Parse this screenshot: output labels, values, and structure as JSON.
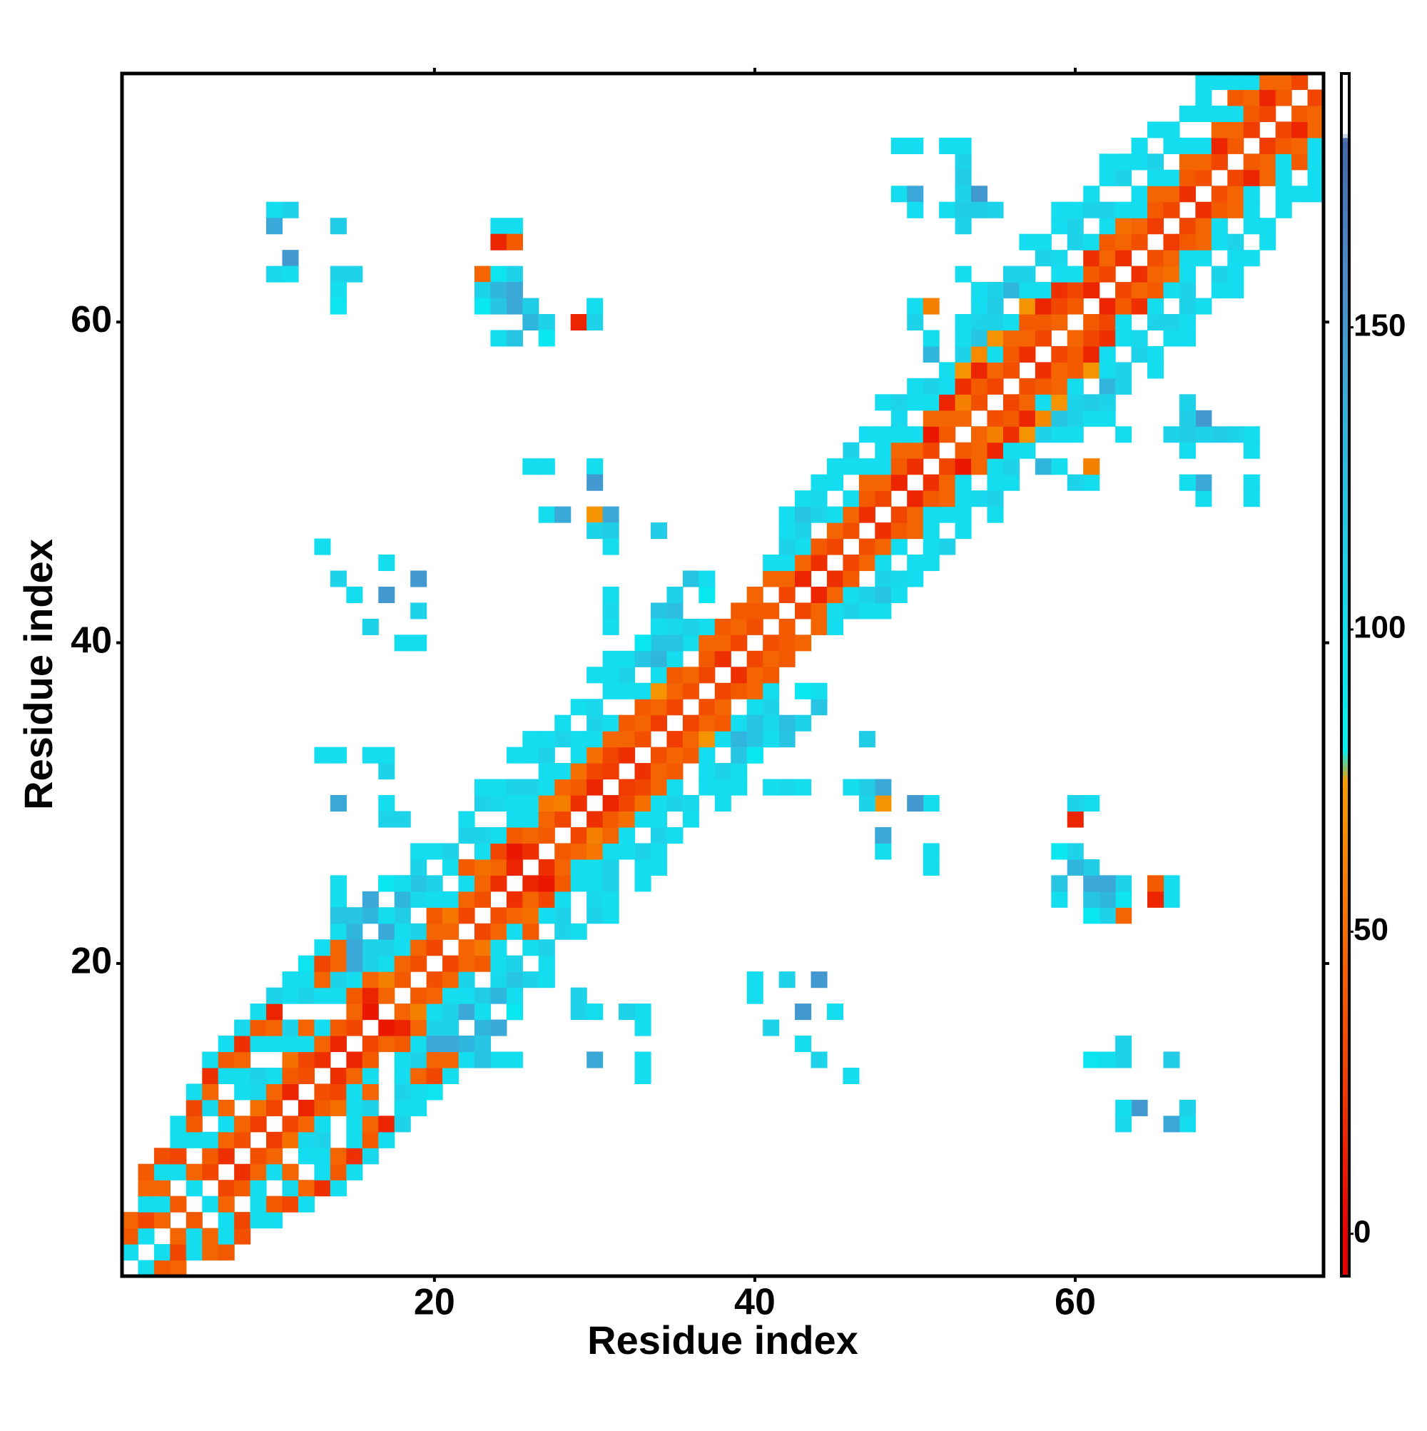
{
  "chart_data": {
    "type": "contact-map",
    "x_label": "Residue index",
    "y_label": "Residue index",
    "xlim": [
      0.5,
      75.5
    ],
    "ylim": [
      0.5,
      75.5
    ],
    "xticks": [
      20,
      40,
      60
    ],
    "yticks": [
      20,
      40,
      60
    ],
    "clim": [
      -7,
      192
    ],
    "cticks": [
      0,
      50,
      100,
      150
    ],
    "colorscale": [
      [
        0,
        "#e60000"
      ],
      [
        25,
        "#f03c00"
      ],
      [
        50,
        "#f56e00"
      ],
      [
        75,
        "#f59c00"
      ],
      [
        80,
        "#00f2f5"
      ],
      [
        110,
        "#1cd3ea"
      ],
      [
        140,
        "#3aa8d8"
      ],
      [
        160,
        "#4a8ac8"
      ],
      [
        181,
        "#4466aa"
      ],
      [
        182,
        "#ffffff"
      ]
    ],
    "symmetric": true,
    "first_residue": 1,
    "offsets": [
      1,
      2,
      3,
      4,
      5,
      6,
      7,
      8
    ],
    "band": [
      [
        100,
        40,
        45,
        null,
        null,
        null,
        null,
        null
      ],
      [
        100,
        30,
        100,
        45,
        40,
        null,
        null,
        null
      ],
      [
        45,
        100,
        45,
        100,
        35,
        null,
        null,
        null
      ],
      [
        40,
        null,
        100,
        30,
        100,
        100,
        null,
        null
      ],
      [
        100,
        45,
        null,
        100,
        40,
        30,
        100,
        null
      ],
      [
        30,
        40,
        100,
        null,
        105,
        45,
        20,
        100
      ],
      [
        20,
        45,
        100,
        45,
        null,
        100,
        40,
        100
      ],
      [
        35,
        45,
        null,
        100,
        100,
        45,
        20,
        105
      ],
      [
        25,
        50,
        105,
        110,
        null,
        100,
        40,
        100
      ],
      [
        30,
        45,
        100,
        null,
        100,
        45,
        15,
        110
      ],
      [
        15,
        40,
        50,
        100,
        110,
        null,
        100,
        100
      ],
      [
        35,
        30,
        100,
        45,
        null,
        110,
        100,
        95
      ],
      [
        20,
        45,
        100,
        null,
        100,
        45,
        30,
        100
      ],
      [
        15,
        40,
        null,
        100,
        110,
        45,
        45,
        100
      ],
      [
        30,
        45,
        40,
        100,
        null,
        120,
        130,
        110
      ],
      [
        10,
        15,
        45,
        110,
        110,
        null,
        130,
        140
      ],
      [
        45,
        60,
        100,
        110,
        140,
        130,
        null,
        140
      ],
      [
        40,
        45,
        100,
        100,
        115,
        130,
        140,
        null
      ],
      [
        35,
        45,
        110,
        null,
        105,
        120,
        110,
        100
      ],
      [
        30,
        45,
        40,
        100,
        110,
        null,
        100,
        null
      ],
      [
        45,
        55,
        100,
        null,
        100,
        110,
        null,
        null
      ],
      [
        30,
        45,
        100,
        40,
        null,
        110,
        100,
        null
      ],
      [
        35,
        45,
        50,
        100,
        110,
        null,
        110,
        100
      ],
      [
        20,
        45,
        30,
        100,
        null,
        105,
        100,
        null
      ],
      [
        15,
        10,
        40,
        100,
        100,
        110,
        null,
        100
      ],
      [
        20,
        45,
        100,
        100,
        110,
        null,
        100,
        100
      ],
      [
        40,
        45,
        55,
        100,
        100,
        110,
        100,
        null
      ],
      [
        30,
        60,
        45,
        100,
        null,
        110,
        100,
        null
      ],
      [
        20,
        40,
        50,
        100,
        100,
        null,
        100,
        null
      ],
      [
        15,
        30,
        50,
        100,
        110,
        105,
        null,
        100
      ],
      [
        25,
        30,
        45,
        100,
        null,
        100,
        100,
        100
      ],
      [
        20,
        45,
        40,
        null,
        100,
        110,
        100,
        null
      ],
      [
        35,
        45,
        40,
        100,
        null,
        120,
        120,
        null
      ],
      [
        25,
        45,
        70,
        100,
        130,
        120,
        140,
        120
      ],
      [
        30,
        45,
        40,
        100,
        130,
        null,
        125,
        110
      ],
      [
        35,
        45,
        null,
        100,
        110,
        null,
        null,
        120
      ],
      [
        30,
        40,
        45,
        100,
        null,
        90,
        100,
        null
      ],
      [
        20,
        45,
        40,
        null,
        null,
        null,
        null,
        null
      ],
      [
        30,
        45,
        40,
        null,
        null,
        null,
        null,
        null
      ],
      [
        35,
        40,
        45,
        null,
        null,
        null,
        null,
        null
      ],
      [
        40,
        null,
        45,
        100,
        null,
        null,
        null,
        null
      ],
      [
        30,
        45,
        100,
        110,
        100,
        100,
        null,
        null
      ],
      [
        15,
        45,
        100,
        110,
        120,
        100,
        null,
        null
      ],
      [
        20,
        40,
        null,
        110,
        105,
        100,
        null,
        null
      ],
      [
        30,
        45,
        100,
        null,
        100,
        100,
        null,
        null
      ],
      [
        35,
        45,
        100,
        null,
        100,
        110,
        null,
        null
      ],
      [
        20,
        40,
        45,
        100,
        null,
        100,
        null,
        null
      ],
      [
        30,
        45,
        100,
        100,
        100,
        null,
        100,
        null
      ],
      [
        15,
        40,
        45,
        100,
        105,
        110,
        null,
        null
      ],
      [
        20,
        45,
        100,
        null,
        100,
        100,
        null,
        null
      ],
      [
        30,
        10,
        45,
        100,
        110,
        null,
        130,
        null
      ],
      [
        40,
        45,
        15,
        100,
        100,
        null,
        null,
        null
      ],
      [
        45,
        60,
        20,
        70,
        110,
        100,
        100,
        null
      ],
      [
        35,
        40,
        15,
        65,
        120,
        110,
        100,
        null
      ],
      [
        30,
        45,
        100,
        70,
        110,
        115,
        130,
        null
      ],
      [
        35,
        40,
        45,
        100,
        null,
        130,
        110,
        null
      ],
      [
        20,
        45,
        40,
        70,
        100,
        110,
        null,
        100
      ],
      [
        30,
        40,
        15,
        100,
        null,
        110,
        100,
        null
      ],
      [
        45,
        30,
        20,
        100,
        105,
        null,
        100,
        100
      ],
      [
        40,
        30,
        100,
        null,
        110,
        110,
        100,
        null
      ],
      [
        15,
        40,
        20,
        100,
        null,
        110,
        100,
        null
      ],
      [
        30,
        45,
        40,
        100,
        110,
        null,
        100,
        100
      ],
      [
        20,
        45,
        50,
        100,
        null,
        110,
        100,
        null
      ],
      [
        35,
        45,
        100,
        100,
        null,
        100,
        100,
        null
      ],
      [
        25,
        40,
        45,
        100,
        110,
        null,
        100,
        null
      ],
      [
        30,
        45,
        100,
        null,
        100,
        100,
        null,
        null
      ],
      [
        20,
        40,
        45,
        100,
        null,
        100,
        null
      ],
      [
        35,
        45,
        100,
        null,
        100,
        100,
        100
      ],
      [
        30,
        15,
        45,
        100,
        null,
        100
      ],
      [
        40,
        45,
        100,
        40,
        100
      ],
      [
        25,
        40,
        45,
        100
      ],
      [
        30,
        15,
        45
      ],
      [
        40,
        45
      ],
      [
        30
      ]
    ],
    "contacts": [
      [
        10,
        67,
        100
      ],
      [
        11,
        67,
        110
      ],
      [
        10,
        66,
        140
      ],
      [
        14,
        66,
        115
      ],
      [
        11,
        64,
        150
      ],
      [
        10,
        63,
        105
      ],
      [
        11,
        63,
        100
      ],
      [
        14,
        63,
        110
      ],
      [
        15,
        63,
        110
      ],
      [
        14,
        62,
        100
      ],
      [
        14,
        61,
        95
      ],
      [
        24,
        66,
        100
      ],
      [
        25,
        66,
        100
      ],
      [
        24,
        65,
        15
      ],
      [
        25,
        65,
        40
      ],
      [
        23,
        63,
        45
      ],
      [
        24,
        63,
        95
      ],
      [
        25,
        63,
        110
      ],
      [
        23,
        62,
        110
      ],
      [
        24,
        62,
        130
      ],
      [
        25,
        62,
        140
      ],
      [
        23,
        61,
        90
      ],
      [
        24,
        61,
        120
      ],
      [
        25,
        61,
        140
      ],
      [
        26,
        61,
        115
      ],
      [
        26,
        60,
        130
      ],
      [
        27,
        60,
        110
      ],
      [
        24,
        59,
        100
      ],
      [
        25,
        59,
        120
      ],
      [
        27,
        59,
        90
      ],
      [
        29,
        60,
        15
      ],
      [
        30,
        61,
        100
      ],
      [
        30,
        60,
        110
      ],
      [
        26,
        51,
        100
      ],
      [
        27,
        51,
        100
      ],
      [
        30,
        51,
        100
      ],
      [
        30,
        50,
        150
      ],
      [
        27,
        48,
        100
      ],
      [
        28,
        48,
        140
      ],
      [
        30,
        48,
        70
      ],
      [
        31,
        48,
        140
      ],
      [
        30,
        47,
        110
      ],
      [
        31,
        47,
        115
      ],
      [
        34,
        47,
        115
      ],
      [
        31,
        46,
        100
      ],
      [
        31,
        43,
        100
      ],
      [
        31,
        42,
        105
      ],
      [
        31,
        41,
        100
      ],
      [
        34,
        41,
        100
      ],
      [
        35,
        41,
        105
      ],
      [
        33,
        40,
        90
      ],
      [
        35,
        40,
        120
      ],
      [
        49,
        71,
        100
      ],
      [
        50,
        71,
        100
      ],
      [
        52,
        71,
        100
      ],
      [
        53,
        71,
        100
      ],
      [
        53,
        70,
        110
      ],
      [
        53,
        69,
        115
      ],
      [
        49,
        68,
        100
      ],
      [
        50,
        68,
        140
      ],
      [
        53,
        68,
        110
      ],
      [
        54,
        68,
        150
      ],
      [
        50,
        67,
        100
      ],
      [
        52,
        67,
        100
      ],
      [
        53,
        67,
        115
      ],
      [
        54,
        67,
        115
      ],
      [
        55,
        67,
        110
      ],
      [
        53,
        66,
        110
      ],
      [
        50,
        61,
        100
      ],
      [
        51,
        61,
        60
      ],
      [
        50,
        60,
        110
      ],
      [
        51,
        59,
        100
      ],
      [
        53,
        63,
        100
      ],
      [
        54,
        62,
        100
      ],
      [
        55,
        62,
        110
      ],
      [
        13,
        33,
        100
      ],
      [
        14,
        33,
        100
      ],
      [
        16,
        33,
        100
      ],
      [
        17,
        33,
        100
      ],
      [
        17,
        32,
        110
      ],
      [
        14,
        30,
        140
      ],
      [
        17,
        30,
        100
      ],
      [
        17,
        29,
        110
      ],
      [
        18,
        29,
        110
      ],
      [
        14,
        25,
        100
      ],
      [
        14,
        24,
        100
      ],
      [
        17,
        25,
        90
      ],
      [
        18,
        25,
        100
      ],
      [
        14,
        23,
        120
      ],
      [
        15,
        23,
        120
      ],
      [
        17,
        23,
        100
      ],
      [
        15,
        21,
        140
      ],
      [
        15,
        20,
        140
      ],
      [
        13,
        46,
        100
      ],
      [
        14,
        44,
        110
      ],
      [
        15,
        43,
        100
      ],
      [
        17,
        45,
        100
      ],
      [
        19,
        44,
        150
      ],
      [
        17,
        43,
        150
      ],
      [
        16,
        41,
        110
      ],
      [
        19,
        42,
        110
      ],
      [
        18,
        40,
        100
      ],
      [
        19,
        40,
        100
      ]
    ]
  }
}
